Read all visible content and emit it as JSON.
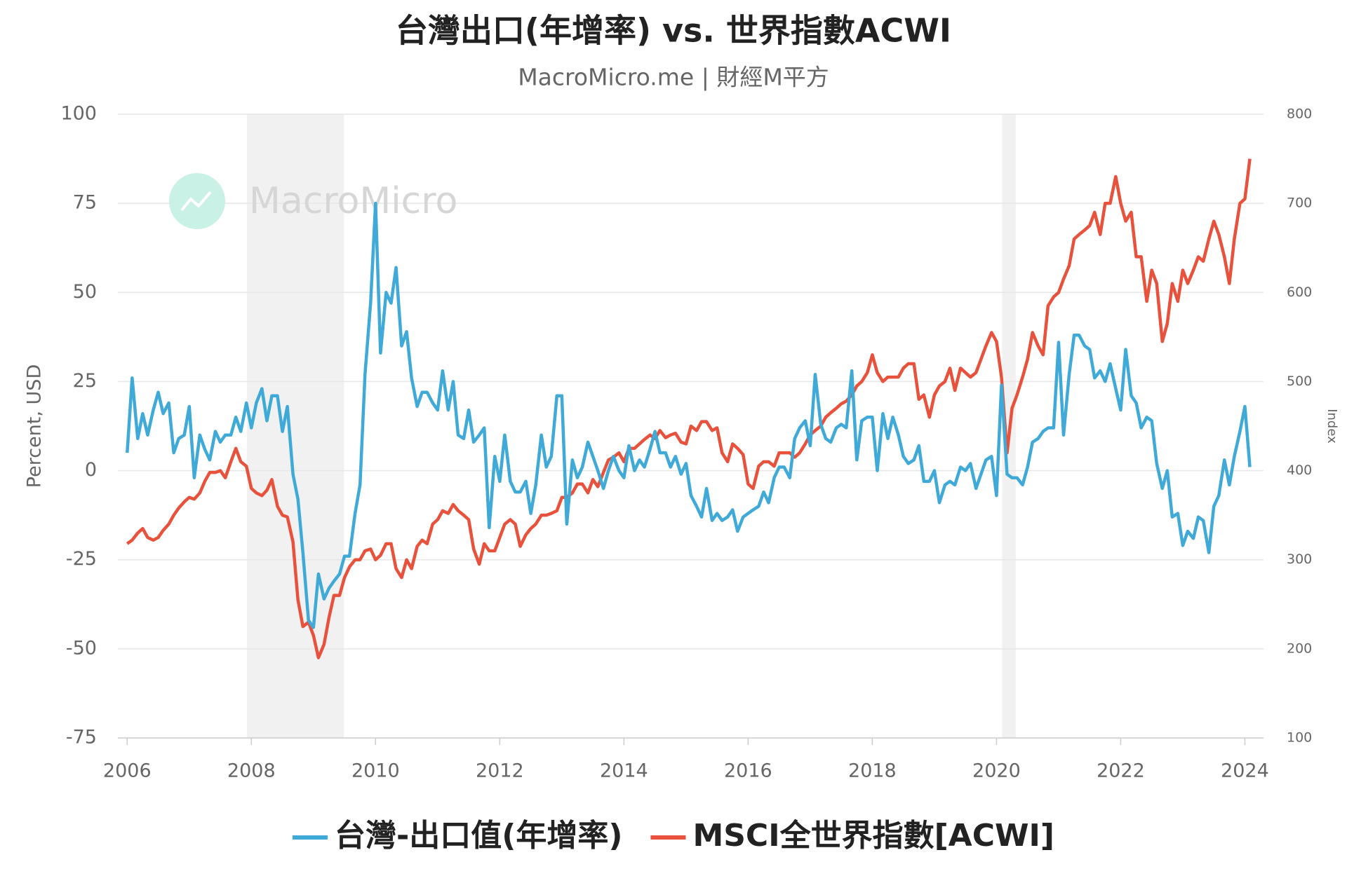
{
  "chart_data": {
    "type": "line",
    "title": "台灣出口(年增率) vs. 世界指數ACWI",
    "subtitle": "MacroMicro.me | 財經M平方",
    "watermark": "MacroMicro",
    "y_label": "Percent, USD",
    "y2_label": "Index",
    "grid": true,
    "legend": "bottom",
    "shaded_ranges": [
      [
        2007.93,
        2009.49
      ],
      [
        2020.09,
        2020.31
      ]
    ],
    "xlim": [
      2005.85,
      2024.3
    ],
    "xticks": [
      2006,
      2008,
      2010,
      2012,
      2014,
      2016,
      2018,
      2020,
      2022,
      2024
    ],
    "ylim": [
      -75,
      100
    ],
    "yticks": [
      -75,
      -50,
      -25,
      0,
      25,
      50,
      75,
      100
    ],
    "y2lim": [
      100,
      800
    ],
    "y2ticks": [
      100,
      200,
      300,
      400,
      500,
      600,
      700,
      800
    ],
    "x": [
      2006,
      2006.08,
      2006.17,
      2006.25,
      2006.33,
      2006.42,
      2006.5,
      2006.58,
      2006.67,
      2006.75,
      2006.83,
      2006.92,
      2007,
      2007.08,
      2007.17,
      2007.25,
      2007.33,
      2007.42,
      2007.5,
      2007.58,
      2007.67,
      2007.75,
      2007.83,
      2007.92,
      2008,
      2008.08,
      2008.17,
      2008.25,
      2008.33,
      2008.42,
      2008.5,
      2008.58,
      2008.67,
      2008.75,
      2008.83,
      2008.92,
      2009,
      2009.08,
      2009.17,
      2009.25,
      2009.33,
      2009.42,
      2009.5,
      2009.58,
      2009.67,
      2009.75,
      2009.83,
      2009.92,
      2010,
      2010.08,
      2010.17,
      2010.25,
      2010.33,
      2010.42,
      2010.5,
      2010.58,
      2010.67,
      2010.75,
      2010.83,
      2010.92,
      2011,
      2011.08,
      2011.17,
      2011.25,
      2011.33,
      2011.42,
      2011.5,
      2011.58,
      2011.67,
      2011.75,
      2011.83,
      2011.92,
      2012,
      2012.08,
      2012.17,
      2012.25,
      2012.33,
      2012.42,
      2012.5,
      2012.58,
      2012.67,
      2012.75,
      2012.83,
      2012.92,
      2013,
      2013.08,
      2013.17,
      2013.25,
      2013.33,
      2013.42,
      2013.5,
      2013.58,
      2013.67,
      2013.75,
      2013.83,
      2013.92,
      2014,
      2014.08,
      2014.17,
      2014.25,
      2014.33,
      2014.42,
      2014.5,
      2014.58,
      2014.67,
      2014.75,
      2014.83,
      2014.92,
      2015,
      2015.08,
      2015.17,
      2015.25,
      2015.33,
      2015.42,
      2015.5,
      2015.58,
      2015.67,
      2015.75,
      2015.83,
      2015.92,
      2016,
      2016.08,
      2016.17,
      2016.25,
      2016.33,
      2016.42,
      2016.5,
      2016.58,
      2016.67,
      2016.75,
      2016.83,
      2016.92,
      2017,
      2017.08,
      2017.17,
      2017.25,
      2017.33,
      2017.42,
      2017.5,
      2017.58,
      2017.67,
      2017.75,
      2017.83,
      2017.92,
      2018,
      2018.08,
      2018.17,
      2018.25,
      2018.33,
      2018.42,
      2018.5,
      2018.58,
      2018.67,
      2018.75,
      2018.83,
      2018.92,
      2019,
      2019.08,
      2019.17,
      2019.25,
      2019.33,
      2019.42,
      2019.5,
      2019.58,
      2019.67,
      2019.75,
      2019.83,
      2019.92,
      2020,
      2020.08,
      2020.17,
      2020.25,
      2020.33,
      2020.42,
      2020.5,
      2020.58,
      2020.67,
      2020.75,
      2020.83,
      2020.92,
      2021,
      2021.08,
      2021.17,
      2021.25,
      2021.33,
      2021.42,
      2021.5,
      2021.58,
      2021.67,
      2021.75,
      2021.83,
      2021.92,
      2022,
      2022.08,
      2022.17,
      2022.25,
      2022.33,
      2022.42,
      2022.5,
      2022.58,
      2022.67,
      2022.75,
      2022.83,
      2022.92,
      2023,
      2023.08,
      2023.17,
      2023.25,
      2023.33,
      2023.42,
      2023.5,
      2023.58,
      2023.67,
      2023.75,
      2023.83,
      2023.92,
      2024,
      2024.08
    ],
    "series": [
      {
        "name": "台灣-出口值(年增率)",
        "color": "#3fa9d8",
        "values": [
          5,
          26,
          9,
          16,
          10,
          17,
          22,
          16,
          19,
          5,
          9,
          10,
          18,
          -2,
          10,
          6,
          3,
          11,
          8,
          10,
          10,
          15,
          11,
          19,
          12,
          19,
          23,
          14,
          21,
          21,
          11,
          18,
          -1,
          -8,
          -23,
          -42,
          -44,
          -29,
          -36,
          -33,
          -31,
          -29,
          -24,
          -24,
          -12,
          -4,
          27,
          47,
          75,
          33,
          50,
          47,
          57,
          35,
          39,
          26,
          18,
          22,
          22,
          19,
          17,
          28,
          17,
          25,
          10,
          9,
          17,
          8,
          10,
          12,
          -16,
          4,
          -3,
          10,
          -3,
          -6,
          -6,
          -3,
          -12,
          -4,
          10,
          1,
          4,
          21,
          21,
          -15,
          3,
          -2,
          1,
          8,
          4,
          0,
          -5,
          0,
          4,
          0,
          -2,
          7,
          0,
          3,
          1,
          6,
          11,
          5,
          5,
          1,
          4,
          -1,
          2,
          -7,
          -10,
          -13,
          -5,
          -14,
          -12,
          -14,
          -13,
          -11,
          -17,
          -13,
          -12,
          -11,
          -10,
          -6,
          -9,
          -2,
          1,
          1,
          -2,
          9,
          12,
          14,
          7,
          27,
          13,
          9,
          8,
          12,
          13,
          12,
          28,
          3,
          14,
          15,
          15,
          0,
          16,
          9,
          15,
          10,
          4,
          2,
          3,
          7,
          -3,
          -3,
          0,
          -9,
          -4,
          -3,
          -4,
          1,
          0,
          2,
          -5,
          -1,
          3,
          4,
          -7,
          24,
          -1,
          -2,
          -2,
          -4,
          1,
          8,
          9,
          11,
          12,
          12,
          36,
          10,
          27,
          38,
          38,
          35,
          34,
          26,
          28,
          25,
          30,
          23,
          17,
          34,
          21,
          19,
          12,
          15,
          14,
          2,
          -5,
          0,
          -13,
          -12,
          -21,
          -17,
          -19,
          -13,
          -14,
          -23,
          -10,
          -7,
          3,
          -4,
          4,
          11,
          18,
          1
        ]
      },
      {
        "name": "MSCI全世界指數[ACWI]",
        "color": "#e8513b",
        "axis": "y2",
        "values": [
          318,
          322,
          330,
          335,
          325,
          322,
          325,
          333,
          340,
          350,
          358,
          365,
          370,
          368,
          375,
          388,
          398,
          398,
          400,
          392,
          410,
          425,
          410,
          405,
          380,
          375,
          372,
          378,
          390,
          360,
          350,
          348,
          320,
          255,
          225,
          230,
          215,
          190,
          205,
          235,
          260,
          260,
          280,
          292,
          300,
          300,
          310,
          312,
          300,
          305,
          318,
          318,
          290,
          280,
          300,
          290,
          315,
          322,
          318,
          340,
          345,
          355,
          352,
          362,
          355,
          350,
          345,
          312,
          295,
          318,
          310,
          310,
          325,
          340,
          345,
          340,
          315,
          328,
          335,
          340,
          350,
          350,
          352,
          355,
          370,
          370,
          375,
          385,
          385,
          375,
          390,
          382,
          398,
          412,
          415,
          420,
          410,
          425,
          425,
          430,
          435,
          440,
          436,
          445,
          437,
          440,
          442,
          432,
          430,
          450,
          445,
          455,
          455,
          445,
          448,
          420,
          410,
          430,
          425,
          418,
          385,
          380,
          405,
          410,
          410,
          405,
          420,
          420,
          420,
          415,
          420,
          430,
          440,
          445,
          450,
          460,
          465,
          470,
          475,
          478,
          485,
          495,
          500,
          510,
          530,
          510,
          500,
          505,
          505,
          505,
          515,
          520,
          520,
          480,
          485,
          460,
          485,
          495,
          500,
          515,
          490,
          515,
          510,
          505,
          510,
          525,
          540,
          555,
          545,
          505,
          420,
          470,
          485,
          505,
          525,
          555,
          540,
          530,
          585,
          595,
          600,
          615,
          630,
          660,
          665,
          670,
          675,
          690,
          665,
          700,
          700,
          730,
          700,
          680,
          690,
          640,
          640,
          590,
          625,
          610,
          545,
          565,
          610,
          590,
          625,
          610,
          625,
          640,
          635,
          660,
          680,
          665,
          640,
          610,
          660,
          700,
          705,
          750
        ]
      }
    ]
  }
}
